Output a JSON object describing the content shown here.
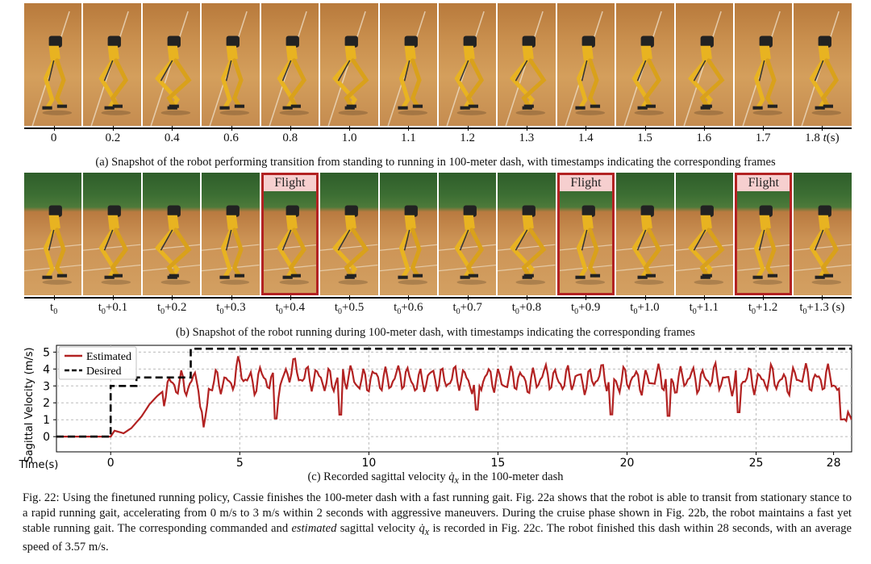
{
  "strip_a": {
    "timestamps": [
      "0",
      "0.2",
      "0.4",
      "0.6",
      "0.8",
      "1.0",
      "1.1",
      "1.2",
      "1.3",
      "1.4",
      "1.5",
      "1.6",
      "1.7",
      "1.8"
    ],
    "unit": "t(s)",
    "caption": "(a) Snapshot of the robot performing transition from standing to running in 100-meter dash, with timestamps indicating the corresponding frames"
  },
  "strip_b": {
    "timestamps": [
      "t0",
      "t0+0.1",
      "t0+0.2",
      "t0+0.3",
      "t0+0.4",
      "t0+0.5",
      "t0+0.6",
      "t0+0.7",
      "t0+0.8",
      "t0+0.9",
      "t0+1.0",
      "t0+1.1",
      "t0+1.2",
      "t0+1.3"
    ],
    "unit": "(s)",
    "flight_label": "Flight",
    "flight_frames": [
      4,
      9,
      12
    ],
    "caption": "(b) Snapshot of the robot running during 100-meter dash, with timestamps indicating the corresponding frames"
  },
  "chart_data": {
    "type": "line",
    "ylabel": "Sagittal Velocity (m/s)",
    "xlabel": "Time(s)",
    "xlim": [
      -2.1,
      28.7
    ],
    "ylim": [
      -0.9,
      5.4
    ],
    "xticks": [
      0,
      5,
      10,
      15,
      20,
      25
    ],
    "yticks": [
      0,
      1,
      2,
      3,
      4,
      5
    ],
    "grid": true,
    "legend_position": "top-left",
    "series": [
      {
        "name": "Estimated",
        "color": "#b22222",
        "style": "solid",
        "points": [
          [
            -2.1,
            0
          ],
          [
            0,
            0
          ],
          [
            0.15,
            0.35
          ],
          [
            0.5,
            0.2
          ],
          [
            0.8,
            0.5
          ],
          [
            1.2,
            1.2
          ],
          [
            1.5,
            1.9
          ],
          [
            1.8,
            2.4
          ],
          [
            2.2,
            2.9
          ],
          [
            2.6,
            3.0
          ],
          [
            3.0,
            3.2
          ],
          [
            3.4,
            3.4
          ],
          [
            3.6,
            -0.3
          ],
          [
            3.8,
            3.0
          ],
          [
            4.2,
            3.5
          ],
          [
            4.6,
            2.9
          ],
          [
            5.0,
            4.1
          ],
          [
            5.5,
            3.1
          ],
          [
            6.0,
            3.5
          ],
          [
            6.5,
            2.8
          ],
          [
            7.0,
            4.0
          ],
          [
            8,
            3.3
          ],
          [
            9,
            3.5
          ],
          [
            10,
            3.3
          ],
          [
            11,
            3.5
          ],
          [
            12,
            3.3
          ],
          [
            13,
            3.5
          ],
          [
            14,
            3.3
          ],
          [
            15,
            3.4
          ],
          [
            16,
            3.3
          ],
          [
            17,
            3.5
          ],
          [
            18,
            3.3
          ],
          [
            19,
            3.5
          ],
          [
            20,
            3.3
          ],
          [
            21,
            3.4
          ],
          [
            22,
            3.3
          ],
          [
            23,
            3.5
          ],
          [
            24,
            3.3
          ],
          [
            25,
            3.4
          ],
          [
            26,
            3.3
          ],
          [
            27,
            3.5
          ],
          [
            28,
            3.3
          ],
          [
            28.7,
            1.0
          ]
        ]
      },
      {
        "name": "Desired",
        "color": "#000000",
        "style": "dashed",
        "points": [
          [
            -2.1,
            0
          ],
          [
            0,
            0
          ],
          [
            0,
            3.0
          ],
          [
            1,
            3.0
          ],
          [
            1,
            3.5
          ],
          [
            3.1,
            3.5
          ],
          [
            3.1,
            5.2
          ],
          [
            28.7,
            5.2
          ]
        ]
      }
    ]
  },
  "caption_c": {
    "prefix": "(c) Recorded sagittal velocity",
    "symbol": "q̇",
    "subscript": "x",
    "suffix": "in the 100-meter dash"
  },
  "figure_caption": {
    "part1": "Fig. 22: Using the finetuned running policy, Cassie finishes the 100-meter dash with a fast running gait. Fig. 22a shows that the robot is able to transit from stationary stance to a rapid running gait, accelerating from 0 m/s to 3 m/s within 2 seconds with aggressive maneuvers. During the cruise phase shown in Fig. 22b, the robot maintains a fast yet stable running gait. The corresponding commanded and",
    "emph": "estimated",
    "part2": "sagittal velocity",
    "symbol": "q̇",
    "subscript": "x",
    "part3": "is recorded in Fig. 22c. The robot finished this dash within 28 seconds, with an average speed of 3.57 m/s."
  }
}
